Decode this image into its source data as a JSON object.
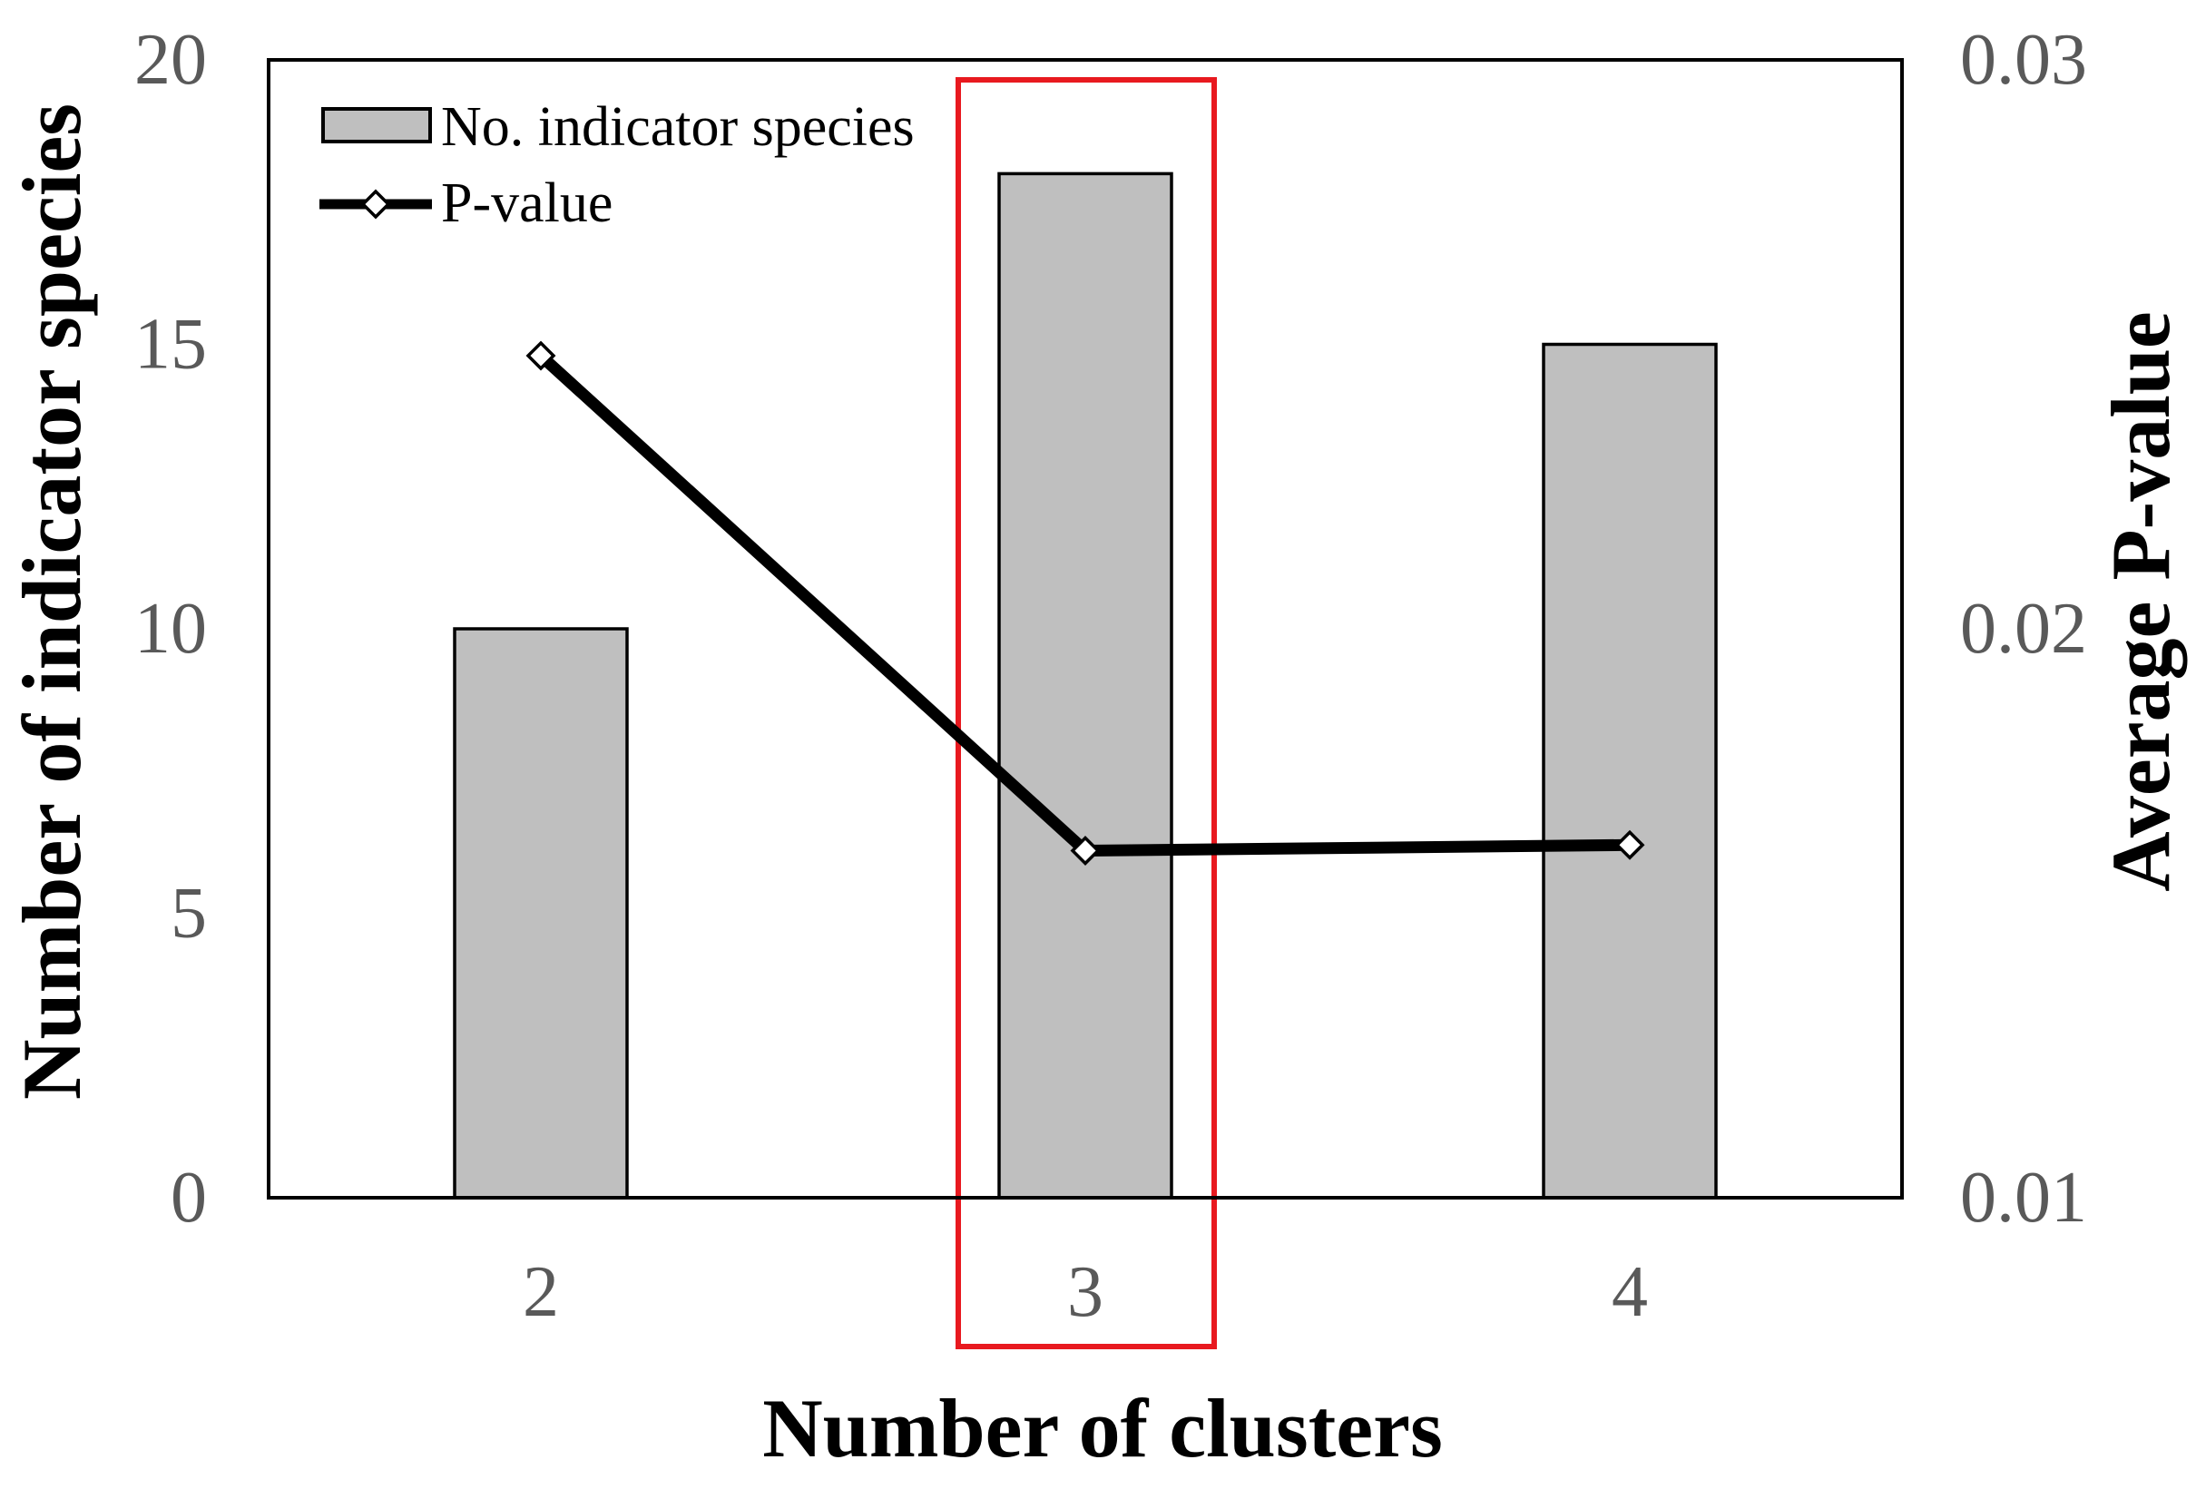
{
  "chart_data": {
    "type": "bar",
    "categories": [
      "2",
      "3",
      "4"
    ],
    "series": [
      {
        "name": "No. indicator species",
        "kind": "bar",
        "axis": "left",
        "values": [
          10,
          18,
          15
        ]
      },
      {
        "name": "P-value",
        "kind": "line",
        "axis": "right",
        "values": [
          0.0248,
          0.0161,
          0.0162
        ]
      }
    ],
    "xlabel": "Number of clusters",
    "ylabel": "Number of indicator species",
    "y2label": "Average P-value",
    "ylim": [
      0,
      20
    ],
    "y2lim": [
      0.01,
      0.03
    ],
    "yticks": [
      "0",
      "5",
      "10",
      "15",
      "20"
    ],
    "y2ticks": [
      "0.01",
      "0.02",
      "0.03"
    ],
    "highlight_category": "3",
    "legend_position": "top-left",
    "grid": false,
    "colors": {
      "bar_fill": "#bfbfbf",
      "line": "#000000",
      "highlight": "#e8191f",
      "tick_text": "#595959"
    }
  }
}
